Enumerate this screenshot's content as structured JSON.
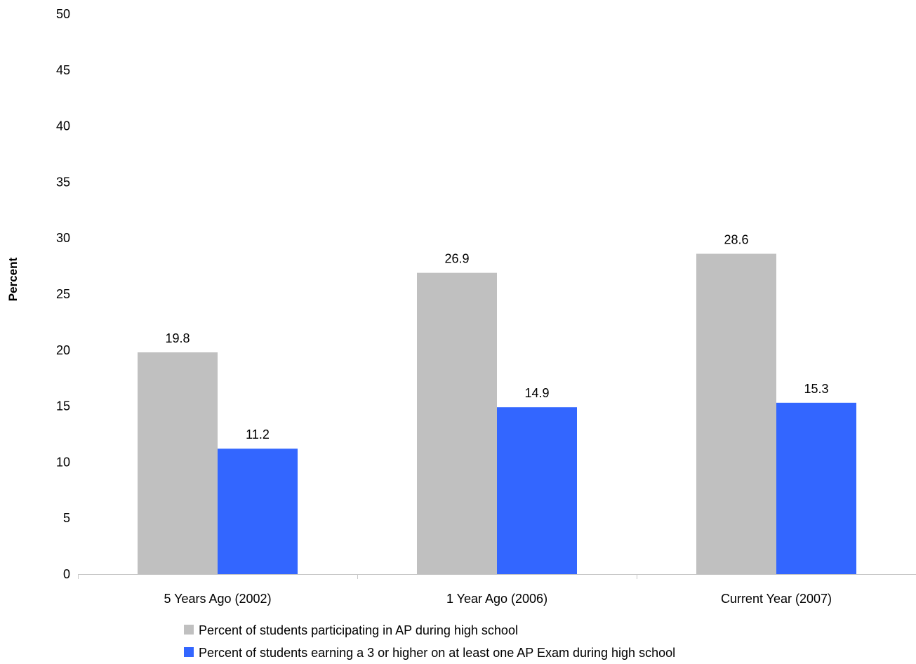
{
  "chart_data": {
    "type": "bar",
    "title": "",
    "xlabel": "",
    "ylabel": "Percent",
    "ylim": [
      0,
      50
    ],
    "yticks": [
      0,
      5,
      10,
      15,
      20,
      25,
      30,
      35,
      40,
      45,
      50
    ],
    "grid": false,
    "legend_position": "bottom",
    "categories": [
      "5 Years Ago (2002)",
      "1 Year Ago (2006)",
      "Current Year (2007)"
    ],
    "series": [
      {
        "name": "Percent of students participating in AP during high school",
        "color": "#c0c0c0",
        "values": [
          19.8,
          26.9,
          28.6
        ],
        "labels": [
          "19.8",
          "26.9",
          "28.6"
        ]
      },
      {
        "name": "Percent of students earning a 3 or higher on at least one AP Exam during high school",
        "color": "#3366ff",
        "values": [
          11.2,
          14.9,
          15.3
        ],
        "labels": [
          "11.2",
          "14.9",
          "15.3"
        ]
      }
    ]
  }
}
